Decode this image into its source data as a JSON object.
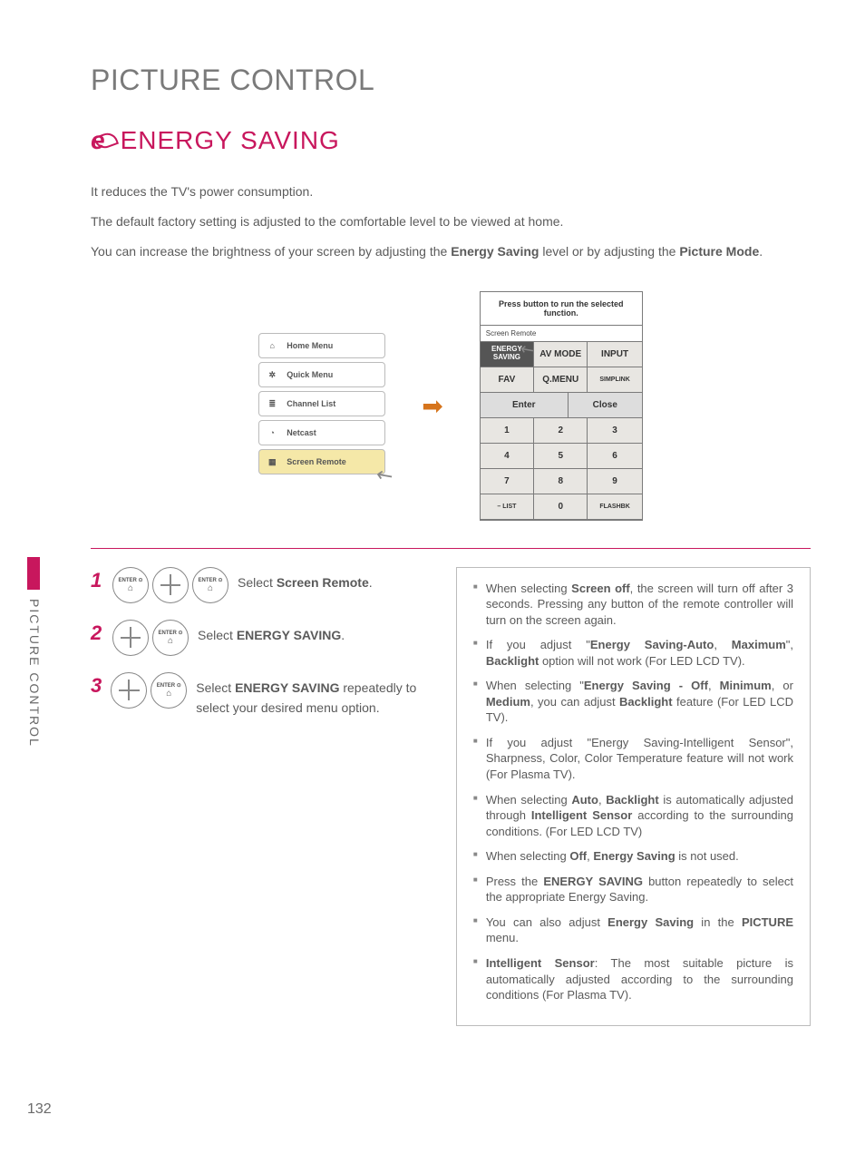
{
  "page": {
    "title": "PICTURE CONTROL",
    "side_label": "PICTURE CONTROL",
    "number": "132"
  },
  "section": {
    "eco_prefix": "e",
    "title": "ENERGY SAVING"
  },
  "intro": {
    "p1": "It reduces the TV's power consumption.",
    "p2": "The default factory setting is adjusted to the comfortable level to be viewed at home.",
    "p3_a": "You can increase the brightness of your screen by adjusting the ",
    "p3_b": "Energy Saving",
    "p3_c": " level or by adjusting the ",
    "p3_d": "Picture Mode",
    "p3_e": "."
  },
  "menu": {
    "items": [
      {
        "label": "Home Menu",
        "icon": "⌂"
      },
      {
        "label": "Quick Menu",
        "icon": "✲"
      },
      {
        "label": "Channel List",
        "icon": "≣"
      },
      {
        "label": "Netcast",
        "icon": "◔"
      },
      {
        "label": "Screen Remote",
        "icon": "▦"
      }
    ]
  },
  "arrow": "➡",
  "remote": {
    "head": "Press button to run the selected function.",
    "sub": "Screen Remote",
    "row1": [
      "ENERGY SAVING",
      "AV MODE",
      "INPUT"
    ],
    "row2": [
      "FAV",
      "Q.MENU",
      "SIMPLINK"
    ],
    "row3": [
      "Enter",
      "Close"
    ],
    "numpad": [
      [
        "1",
        "2",
        "3"
      ],
      [
        "4",
        "5",
        "6"
      ],
      [
        "7",
        "8",
        "9"
      ],
      [
        "– LIST",
        "0",
        "FLASHBK"
      ]
    ]
  },
  "steps": [
    {
      "num": "1",
      "rings": 3,
      "text_a": "Select ",
      "text_b": "Screen Remote",
      "text_c": "."
    },
    {
      "num": "2",
      "rings": 2,
      "text_a": "Select ",
      "text_b": "ENERGY SAVING",
      "text_c": "."
    },
    {
      "num": "3",
      "rings": 2,
      "text_a": "Select ",
      "text_b": "ENERGY SAVING",
      "text_c": " repeatedly to select your desired menu option."
    }
  ],
  "ring_label_top": "ENTER ⊙",
  "ring_label_home": "⌂",
  "notes": [
    {
      "pre": "When selecting ",
      "b1": "Screen off",
      "post": ", the screen will turn off after 3 seconds. Pressing any button of the remote controller will turn on the screen again."
    },
    {
      "pre": "If you adjust \"",
      "b1": "Energy Saving-Auto",
      "mid1": ", ",
      "b2": "Maximum",
      "mid2": "\", ",
      "b3": "Backlight",
      "post": " option will not work (For LED LCD TV)."
    },
    {
      "pre": "When selecting \"",
      "b1": "Energy Saving - Off",
      "mid1": ", ",
      "b2": "Minimum",
      "mid2": ", or ",
      "b3": "Medium",
      "mid3": ", you can adjust ",
      "b4": "Backlight",
      "post": " feature (For LED LCD TV)."
    },
    {
      "pre": "If you adjust \"Energy Saving-Intelligent Sensor\", Sharpness, Color, Color Temperature feature will not work (For Plasma TV)."
    },
    {
      "pre": "When selecting ",
      "b1": "Auto",
      "mid1": ", ",
      "b2": "Backlight",
      "mid2": " is automatically adjusted through ",
      "b3": "Intelligent Sensor",
      "post": " according to the surrounding conditions. (For LED LCD TV)"
    },
    {
      "pre": "When selecting ",
      "b1": "Off",
      "mid1": ", ",
      "b2": "Energy Saving",
      "post": " is not used."
    },
    {
      "pre": "Press the ",
      "b1": "ENERGY SAVING",
      "post": " button repeatedly to select the appropriate Energy Saving."
    },
    {
      "pre": "You can also adjust ",
      "b1": "Energy Saving",
      "mid1": " in the ",
      "b2": "PICTURE",
      "post": " menu."
    },
    {
      "b1": "Intelligent Sensor",
      "post": ": The most suitable picture is automatically adjusted according to the surrounding conditions (For Plasma TV)."
    }
  ]
}
